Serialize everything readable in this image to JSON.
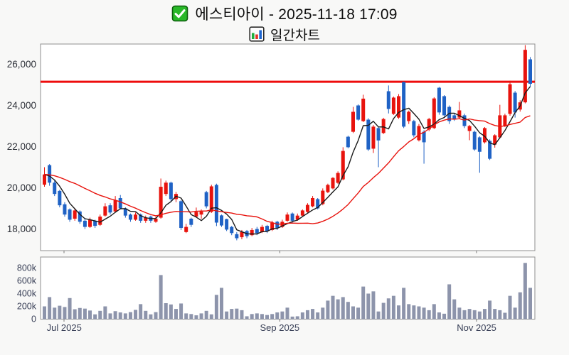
{
  "header": {
    "title": "에스티아이 - 2025-11-18 17:09",
    "subtitle": "일간차트",
    "title_icon": "green-checkbox-icon",
    "subtitle_icon": "bar-chart-icon"
  },
  "colors": {
    "up_candle": "#e8130d",
    "down_candle": "#1f62c5",
    "volume_bar": "#8d94ab",
    "hline": "#ee0c0c",
    "ma_short": "#1a1a1a",
    "ma_long": "#e8130d",
    "plot_bg": "#ffffff",
    "page_bg": "#f8f8f7",
    "frame": "#8f8f8f",
    "price_label": "#2b2e36",
    "axis_label": "#3a4158"
  },
  "chart_data": {
    "type": "candlestick_with_volume",
    "title": "에스티아이 - 2025-11-18 17:09",
    "subtitle": "일간차트 (daily chart)",
    "legend_position": "none",
    "grid": false,
    "y_axis": {
      "labels": [
        "26,000",
        "24,000",
        "22,000",
        "20,000",
        "18,000"
      ],
      "values": [
        26000,
        24000,
        22000,
        20000,
        18000
      ],
      "range": [
        17000,
        27000
      ]
    },
    "volume_axis": {
      "labels": [
        "800k",
        "600k",
        "400k",
        "200k",
        "0"
      ],
      "values_k": [
        800,
        600,
        400,
        200,
        0
      ],
      "range_k": [
        0,
        970
      ]
    },
    "x_axis": {
      "ticks": [
        {
          "label": "Jul 2025",
          "candle_index": 4.9
        },
        {
          "label": "Sep 2025",
          "candle_index": 47.5
        },
        {
          "label": "Nov 2025",
          "candle_index": 86.4
        }
      ]
    },
    "hline_price": 25150,
    "overlays": [
      {
        "name": "MA5",
        "color_role": "ma_short"
      },
      {
        "name": "MA20",
        "color_role": "ma_long"
      }
    ],
    "candle_format": [
      "open",
      "high",
      "low",
      "close",
      "volume_k"
    ],
    "candles": [
      [
        20150,
        21000,
        20050,
        20650,
        200
      ],
      [
        21100,
        21150,
        20100,
        20250,
        345
      ],
      [
        20250,
        20350,
        19600,
        19700,
        180
      ],
      [
        19850,
        19900,
        19050,
        19150,
        210
      ],
      [
        19200,
        19300,
        18600,
        18700,
        190
      ],
      [
        18950,
        19000,
        18350,
        18450,
        330
      ],
      [
        18500,
        19000,
        18400,
        18900,
        155
      ],
      [
        18850,
        18900,
        18250,
        18350,
        175
      ],
      [
        18400,
        18500,
        18000,
        18100,
        165
      ],
      [
        18100,
        18550,
        18050,
        18450,
        135
      ],
      [
        18400,
        18450,
        18050,
        18150,
        75
      ],
      [
        18200,
        18700,
        18150,
        18600,
        130
      ],
      [
        18650,
        19250,
        18600,
        19100,
        200
      ],
      [
        19150,
        19250,
        18700,
        18800,
        90
      ],
      [
        18850,
        19600,
        18800,
        19400,
        125
      ],
      [
        19500,
        19650,
        18950,
        19000,
        105
      ],
      [
        19000,
        19050,
        18550,
        18650,
        90
      ],
      [
        18700,
        18750,
        18350,
        18450,
        110
      ],
      [
        18450,
        18800,
        18400,
        18700,
        145
      ],
      [
        18700,
        18750,
        18300,
        18400,
        235
      ],
      [
        18400,
        18650,
        18300,
        18550,
        130
      ],
      [
        18600,
        18650,
        18300,
        18400,
        75
      ],
      [
        18350,
        18600,
        18300,
        18500,
        110
      ],
      [
        18550,
        20450,
        18500,
        20050,
        690
      ],
      [
        19700,
        20350,
        19600,
        20250,
        250
      ],
      [
        20250,
        20300,
        19350,
        19450,
        230
      ],
      [
        19450,
        19800,
        19300,
        19700,
        160
      ],
      [
        19350,
        19400,
        17950,
        18050,
        245
      ],
      [
        17850,
        18250,
        17800,
        18100,
        90
      ],
      [
        18500,
        18550,
        18100,
        18200,
        80
      ],
      [
        18600,
        19040,
        18550,
        18830,
        60
      ],
      [
        18700,
        18950,
        18500,
        18850,
        90
      ],
      [
        19790,
        19850,
        19000,
        19100,
        130
      ],
      [
        18830,
        20150,
        18780,
        20070,
        75
      ],
      [
        20140,
        20200,
        18140,
        18310,
        380
      ],
      [
        18660,
        18700,
        18100,
        18170,
        490
      ],
      [
        18480,
        18500,
        17900,
        17970,
        120
      ],
      [
        18100,
        18150,
        17700,
        17800,
        160
      ],
      [
        17750,
        17850,
        17450,
        17550,
        165
      ],
      [
        17600,
        17950,
        17500,
        17850,
        140
      ],
      [
        17900,
        17950,
        17550,
        17650,
        45
      ],
      [
        17700,
        18050,
        17650,
        17950,
        80
      ],
      [
        18000,
        18100,
        17700,
        17800,
        90
      ],
      [
        17850,
        18200,
        17800,
        18100,
        80
      ],
      [
        18150,
        18200,
        17800,
        17900,
        65
      ],
      [
        17950,
        18400,
        17900,
        18300,
        80
      ],
      [
        18350,
        18400,
        17950,
        18050,
        105
      ],
      [
        18100,
        18450,
        18050,
        18350,
        120
      ],
      [
        18400,
        18800,
        18350,
        18700,
        180
      ],
      [
        18750,
        18800,
        18300,
        18400,
        40
      ],
      [
        18450,
        18750,
        18400,
        18650,
        45
      ],
      [
        18650,
        18950,
        18600,
        18900,
        105
      ],
      [
        18830,
        19250,
        18780,
        19170,
        140
      ],
      [
        19100,
        19600,
        19050,
        19500,
        160
      ],
      [
        19450,
        19500,
        18950,
        19000,
        105
      ],
      [
        19210,
        19970,
        19150,
        19860,
        180
      ],
      [
        19790,
        20200,
        19740,
        20140,
        290
      ],
      [
        19970,
        20520,
        19920,
        20480,
        365
      ],
      [
        20240,
        20800,
        20190,
        20720,
        310
      ],
      [
        20410,
        21970,
        20360,
        21790,
        345
      ],
      [
        22480,
        22530,
        21920,
        21970,
        270
      ],
      [
        22720,
        23930,
        22660,
        23690,
        200
      ],
      [
        24000,
        24050,
        23260,
        23310,
        180
      ],
      [
        23240,
        24520,
        23190,
        24330,
        510
      ],
      [
        23310,
        23380,
        21790,
        21860,
        400
      ],
      [
        21900,
        23050,
        21690,
        22970,
        435
      ],
      [
        22900,
        22950,
        21000,
        22300,
        120
      ],
      [
        22660,
        23400,
        22610,
        23340,
        255
      ],
      [
        24690,
        24970,
        23610,
        23830,
        325
      ],
      [
        23590,
        24430,
        23540,
        24380,
        365
      ],
      [
        23410,
        24550,
        23350,
        24450,
        215
      ],
      [
        25140,
        25150,
        22900,
        22970,
        490
      ],
      [
        23240,
        23750,
        23100,
        23690,
        235
      ],
      [
        23240,
        23300,
        22450,
        22550,
        215
      ],
      [
        22310,
        23100,
        22250,
        23000,
        200
      ],
      [
        22720,
        22800,
        21170,
        22210,
        180
      ],
      [
        22830,
        23400,
        22750,
        23340,
        140
      ],
      [
        22900,
        24400,
        22850,
        24340,
        235
      ],
      [
        24860,
        24900,
        23550,
        23660,
        105
      ],
      [
        24450,
        24500,
        23450,
        23520,
        85
      ],
      [
        23930,
        24000,
        23100,
        23240,
        545
      ],
      [
        23520,
        23600,
        23250,
        23340,
        310
      ],
      [
        23410,
        24170,
        23350,
        23760,
        180
      ],
      [
        23520,
        23600,
        22900,
        23000,
        140
      ],
      [
        22760,
        23050,
        22310,
        23000,
        160
      ],
      [
        22720,
        22780,
        21800,
        21860,
        140
      ],
      [
        22450,
        22500,
        20730,
        21750,
        120
      ],
      [
        22210,
        22950,
        22150,
        22900,
        160
      ],
      [
        22280,
        22350,
        21350,
        21410,
        290
      ],
      [
        22100,
        22600,
        21950,
        22550,
        160
      ],
      [
        22450,
        24030,
        22400,
        23520,
        140
      ],
      [
        23000,
        23600,
        22950,
        23520,
        100
      ],
      [
        23590,
        25200,
        23500,
        25030,
        365
      ],
      [
        24620,
        24700,
        23410,
        23660,
        180
      ],
      [
        23800,
        24250,
        23700,
        24150,
        420
      ],
      [
        24150,
        26930,
        24100,
        26700,
        880
      ],
      [
        26240,
        26350,
        24900,
        25050,
        490
      ]
    ]
  }
}
